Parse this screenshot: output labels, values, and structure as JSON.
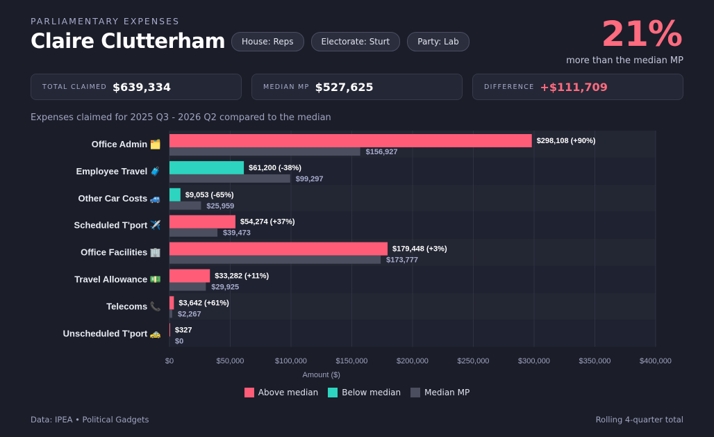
{
  "header": {
    "kicker": "PARLIAMENTARY EXPENSES",
    "name": "Claire Clutterham",
    "pills": [
      "House: Reps",
      "Electorate: Sturt",
      "Party: Lab"
    ],
    "big_pct": "21%",
    "big_sub": "more than the median MP"
  },
  "stats": [
    {
      "label": "TOTAL CLAIMED",
      "value": "$639,334"
    },
    {
      "label": "MEDIAN MP",
      "value": "$527,625"
    },
    {
      "label": "DIFFERENCE",
      "value": "+$111,709"
    }
  ],
  "subtitle": "Expenses claimed for 2025 Q3 - 2026 Q2 compared to the median",
  "colors": {
    "above": "#ff5c78",
    "below": "#2dd4bf",
    "median": "#4b4e5e"
  },
  "chart_data": {
    "type": "bar",
    "orientation": "horizontal",
    "categories": [
      "Office Admin 🗂️",
      "Employee Travel 🧳",
      "Other Car Costs 🚙",
      "Scheduled T'port ✈️",
      "Office Facilities 🏢",
      "Travel Allowance 💵",
      "Telecoms 📞",
      "Unscheduled T'port 🚕"
    ],
    "series": [
      {
        "name": "Claire Clutterham",
        "values": [
          298108,
          61200,
          9053,
          54274,
          179448,
          33282,
          3642,
          327
        ],
        "labels": [
          "$298,108 (+90%)",
          "$61,200 (-38%)",
          "$9,053 (-65%)",
          "$54,274 (+37%)",
          "$179,448 (+3%)",
          "$33,282 (+11%)",
          "$3,642 (+61%)",
          "$327"
        ],
        "status": [
          "above",
          "below",
          "below",
          "above",
          "above",
          "above",
          "above",
          "above"
        ]
      },
      {
        "name": "Median MP",
        "values": [
          156927,
          99297,
          25959,
          39473,
          173777,
          29925,
          2267,
          0
        ],
        "labels": [
          "$156,927",
          "$99,297",
          "$25,959",
          "$39,473",
          "$173,777",
          "$29,925",
          "$2,267",
          "$0"
        ]
      }
    ],
    "xlabel": "Amount ($)",
    "xlim": [
      0,
      400000
    ],
    "xticks": [
      0,
      50000,
      100000,
      150000,
      200000,
      250000,
      300000,
      350000,
      400000
    ],
    "xtick_labels": [
      "$0",
      "$50,000",
      "$100,000",
      "$150,000",
      "$200,000",
      "$250,000",
      "$300,000",
      "$350,000",
      "$400,000"
    ],
    "grid": true,
    "legend": [
      "Above median",
      "Below median",
      "Median MP"
    ],
    "legend_position": "bottom"
  },
  "footer": {
    "left": "Data: IPEA • Political Gadgets",
    "right": "Rolling 4-quarter total"
  }
}
